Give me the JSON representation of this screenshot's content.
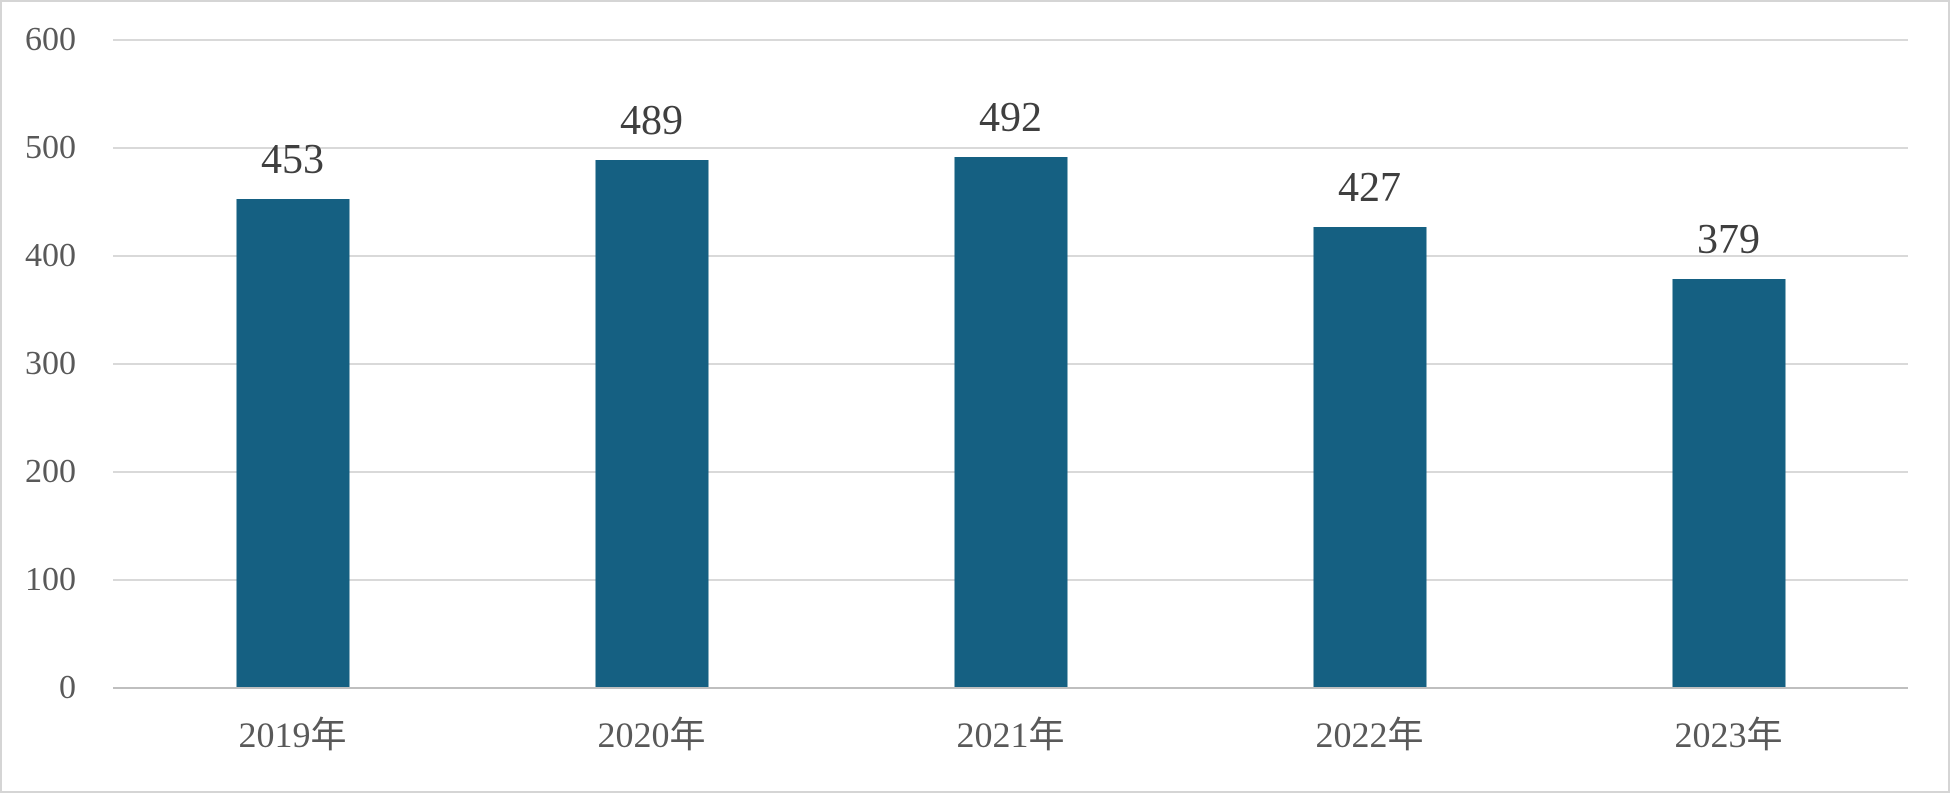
{
  "chart_data": {
    "type": "bar",
    "categories": [
      "2019年",
      "2020年",
      "2021年",
      "2022年",
      "2023年"
    ],
    "values": [
      453,
      489,
      492,
      427,
      379
    ],
    "title": "",
    "xlabel": "",
    "ylabel": "",
    "ylim": [
      0,
      600
    ],
    "yticks": [
      0,
      100,
      200,
      300,
      400,
      500,
      600
    ],
    "grid": true,
    "legend": false,
    "data_labels_shown": true
  },
  "colors": {
    "bar": "#156082",
    "gridline": "#d9d9d9",
    "axis_line": "#bfbfbf",
    "tick_text": "#595959",
    "data_label_text": "#3f3f3f",
    "frame_border": "#d5d5d5",
    "background": "#ffffff"
  }
}
